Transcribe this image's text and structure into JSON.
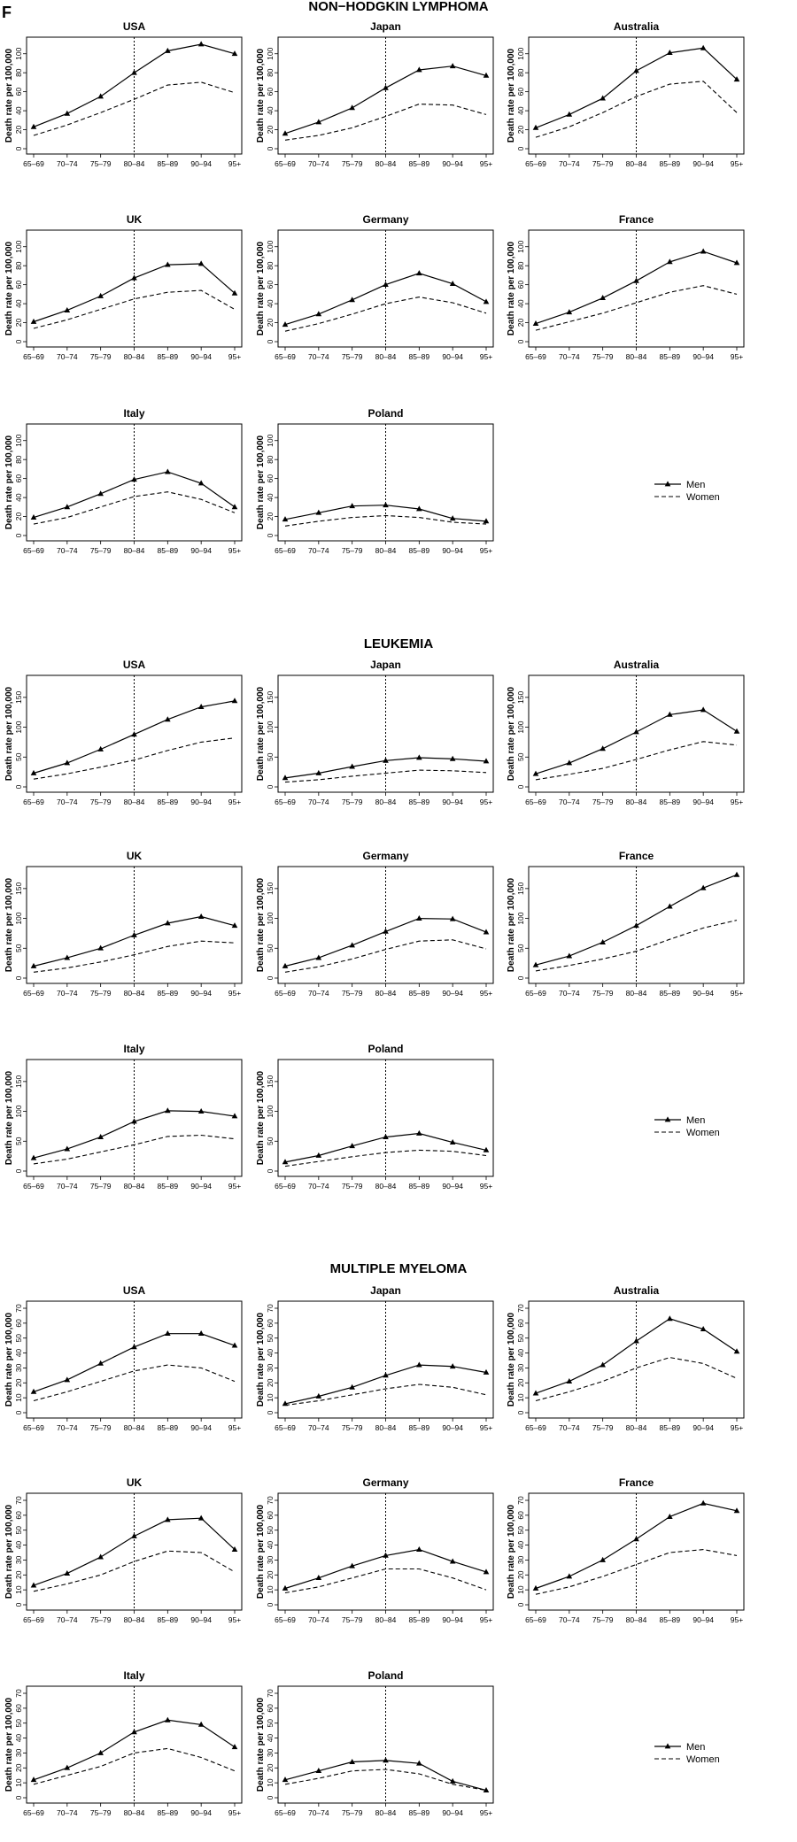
{
  "figure_label": "F",
  "legend": {
    "men": "Men",
    "women": "Women"
  },
  "chart_data": [
    {
      "type": "line",
      "title": "NON−HODGKIN LYMPHOMA",
      "categories": [
        "65–69",
        "70–74",
        "75–79",
        "80–84",
        "85–89",
        "90–94",
        "95+"
      ],
      "ylabel": "Death rate per 100,000",
      "yticks": [
        0,
        20,
        40,
        60,
        80,
        100
      ],
      "ylim": [
        0,
        110
      ],
      "vline_at": "80–84",
      "panels": [
        {
          "title": "USA",
          "series": [
            {
              "name": "Men",
              "values": [
                23,
                37,
                55,
                80,
                103,
                110,
                100
              ]
            },
            {
              "name": "Women",
              "values": [
                14,
                25,
                38,
                52,
                67,
                70,
                59
              ]
            }
          ]
        },
        {
          "title": "Japan",
          "series": [
            {
              "name": "Men",
              "values": [
                16,
                28,
                43,
                64,
                83,
                87,
                77
              ]
            },
            {
              "name": "Women",
              "values": [
                9,
                14,
                22,
                34,
                47,
                46,
                36
              ]
            }
          ]
        },
        {
          "title": "Australia",
          "series": [
            {
              "name": "Men",
              "values": [
                22,
                36,
                53,
                82,
                101,
                106,
                73
              ]
            },
            {
              "name": "Women",
              "values": [
                12,
                23,
                38,
                55,
                68,
                71,
                38
              ]
            }
          ]
        },
        {
          "title": "UK",
          "series": [
            {
              "name": "Men",
              "values": [
                21,
                33,
                48,
                67,
                81,
                82,
                51
              ]
            },
            {
              "name": "Women",
              "values": [
                14,
                23,
                34,
                45,
                52,
                54,
                34
              ]
            }
          ]
        },
        {
          "title": "Germany",
          "series": [
            {
              "name": "Men",
              "values": [
                18,
                29,
                44,
                60,
                72,
                61,
                42
              ]
            },
            {
              "name": "Women",
              "values": [
                11,
                19,
                29,
                40,
                47,
                41,
                30
              ]
            }
          ]
        },
        {
          "title": "France",
          "series": [
            {
              "name": "Men",
              "values": [
                19,
                31,
                46,
                64,
                84,
                95,
                83
              ]
            },
            {
              "name": "Women",
              "values": [
                12,
                21,
                30,
                41,
                52,
                59,
                50
              ]
            }
          ]
        },
        {
          "title": "Italy",
          "series": [
            {
              "name": "Men",
              "values": [
                19,
                30,
                44,
                59,
                67,
                55,
                30
              ]
            },
            {
              "name": "Women",
              "values": [
                12,
                19,
                30,
                41,
                46,
                38,
                24
              ]
            }
          ]
        },
        {
          "title": "Poland",
          "series": [
            {
              "name": "Men",
              "values": [
                17,
                24,
                31,
                32,
                28,
                18,
                15
              ]
            },
            {
              "name": "Women",
              "values": [
                10,
                15,
                19,
                21,
                19,
                14,
                12
              ]
            }
          ]
        }
      ]
    },
    {
      "type": "line",
      "title": "LEUKEMIA",
      "categories": [
        "65–69",
        "70–74",
        "75–79",
        "80–84",
        "85–89",
        "90–94",
        "95+"
      ],
      "ylabel": "Death rate per 100,000",
      "yticks": [
        0,
        50,
        100,
        150
      ],
      "ylim": [
        0,
        175
      ],
      "vline_at": "80–84",
      "panels": [
        {
          "title": "USA",
          "series": [
            {
              "name": "Men",
              "values": [
                23,
                40,
                63,
                88,
                113,
                134,
                144
              ]
            },
            {
              "name": "Women",
              "values": [
                13,
                22,
                33,
                45,
                61,
                75,
                82
              ]
            }
          ]
        },
        {
          "title": "Japan",
          "series": [
            {
              "name": "Men",
              "values": [
                15,
                23,
                34,
                44,
                49,
                47,
                43
              ]
            },
            {
              "name": "Women",
              "values": [
                8,
                12,
                18,
                23,
                28,
                27,
                24
              ]
            }
          ]
        },
        {
          "title": "Australia",
          "series": [
            {
              "name": "Men",
              "values": [
                22,
                40,
                64,
                92,
                121,
                129,
                93
              ]
            },
            {
              "name": "Women",
              "values": [
                12,
                21,
                31,
                46,
                62,
                76,
                70
              ]
            }
          ]
        },
        {
          "title": "UK",
          "series": [
            {
              "name": "Men",
              "values": [
                20,
                34,
                50,
                72,
                92,
                103,
                88
              ]
            },
            {
              "name": "Women",
              "values": [
                10,
                17,
                27,
                39,
                53,
                62,
                59
              ]
            }
          ]
        },
        {
          "title": "Germany",
          "series": [
            {
              "name": "Men",
              "values": [
                20,
                34,
                55,
                78,
                100,
                99,
                77
              ]
            },
            {
              "name": "Women",
              "values": [
                10,
                19,
                32,
                48,
                62,
                64,
                49
              ]
            }
          ]
        },
        {
          "title": "France",
          "series": [
            {
              "name": "Men",
              "values": [
                22,
                37,
                60,
                88,
                120,
                151,
                173
              ]
            },
            {
              "name": "Women",
              "values": [
                12,
                21,
                32,
                45,
                65,
                84,
                97
              ]
            }
          ]
        },
        {
          "title": "Italy",
          "series": [
            {
              "name": "Men",
              "values": [
                22,
                37,
                57,
                83,
                101,
                100,
                92
              ]
            },
            {
              "name": "Women",
              "values": [
                12,
                20,
                32,
                44,
                58,
                60,
                54
              ]
            }
          ]
        },
        {
          "title": "Poland",
          "series": [
            {
              "name": "Men",
              "values": [
                15,
                26,
                42,
                57,
                63,
                48,
                35
              ]
            },
            {
              "name": "Women",
              "values": [
                8,
                16,
                24,
                31,
                35,
                33,
                26
              ]
            }
          ]
        }
      ]
    },
    {
      "type": "line",
      "title": "MULTIPLE MYELOMA",
      "categories": [
        "65–69",
        "70–74",
        "75–79",
        "80–84",
        "85–89",
        "90–94",
        "95+"
      ],
      "ylabel": "Death rate per 100,000",
      "yticks": [
        0,
        10,
        20,
        30,
        40,
        50,
        60,
        70
      ],
      "ylim": [
        0,
        70
      ],
      "vline_at": "80–84",
      "panels": [
        {
          "title": "USA",
          "series": [
            {
              "name": "Men",
              "values": [
                14,
                22,
                33,
                44,
                53,
                53,
                45
              ]
            },
            {
              "name": "Women",
              "values": [
                8,
                14,
                21,
                28,
                32,
                30,
                21
              ]
            }
          ]
        },
        {
          "title": "Japan",
          "series": [
            {
              "name": "Men",
              "values": [
                6,
                11,
                17,
                25,
                32,
                31,
                27
              ]
            },
            {
              "name": "Women",
              "values": [
                5,
                8,
                12,
                16,
                19,
                17,
                12
              ]
            }
          ]
        },
        {
          "title": "Australia",
          "series": [
            {
              "name": "Men",
              "values": [
                13,
                21,
                32,
                48,
                63,
                56,
                41
              ]
            },
            {
              "name": "Women",
              "values": [
                8,
                14,
                21,
                30,
                37,
                33,
                23
              ]
            }
          ]
        },
        {
          "title": "UK",
          "series": [
            {
              "name": "Men",
              "values": [
                13,
                21,
                32,
                46,
                57,
                58,
                37
              ]
            },
            {
              "name": "Women",
              "values": [
                9,
                14,
                20,
                29,
                36,
                35,
                22
              ]
            }
          ]
        },
        {
          "title": "Germany",
          "series": [
            {
              "name": "Men",
              "values": [
                11,
                18,
                26,
                33,
                37,
                29,
                22
              ]
            },
            {
              "name": "Women",
              "values": [
                8,
                12,
                18,
                24,
                24,
                18,
                10
              ]
            }
          ]
        },
        {
          "title": "France",
          "series": [
            {
              "name": "Men",
              "values": [
                11,
                19,
                30,
                44,
                59,
                68,
                63
              ]
            },
            {
              "name": "Women",
              "values": [
                7,
                12,
                19,
                27,
                35,
                37,
                33
              ]
            }
          ]
        },
        {
          "title": "Italy",
          "series": [
            {
              "name": "Men",
              "values": [
                12,
                20,
                30,
                44,
                52,
                49,
                34
              ]
            },
            {
              "name": "Women",
              "values": [
                9,
                15,
                21,
                30,
                33,
                27,
                18
              ]
            }
          ]
        },
        {
          "title": "Poland",
          "series": [
            {
              "name": "Men",
              "values": [
                12,
                18,
                24,
                25,
                23,
                11,
                5
              ]
            },
            {
              "name": "Women",
              "values": [
                9,
                13,
                18,
                19,
                16,
                9,
                5
              ]
            }
          ]
        }
      ]
    }
  ]
}
